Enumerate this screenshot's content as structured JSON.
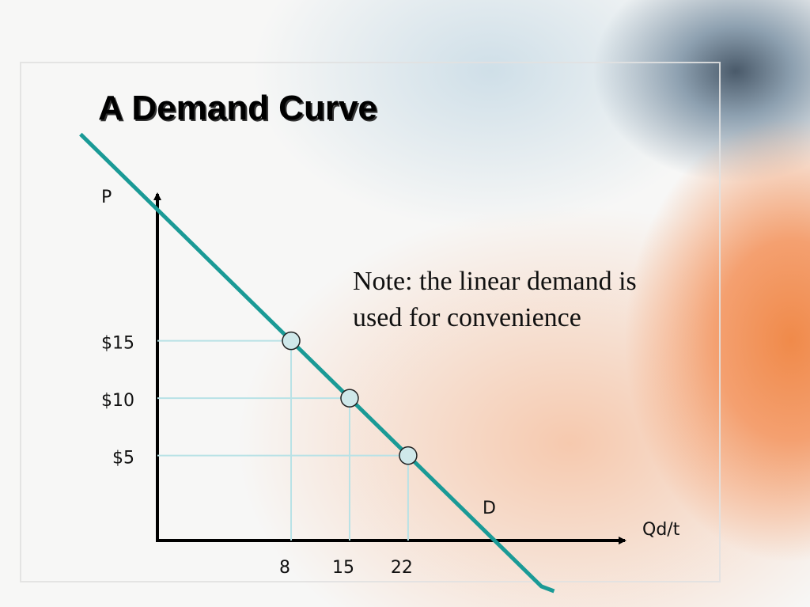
{
  "chart_data": {
    "type": "scatter",
    "title": "A Demand Curve",
    "y_label": "P",
    "x_label": "Qd/t",
    "curve_label": "D",
    "annotation": "Note:  the linear demand is used for convenience",
    "x": [
      8,
      15,
      22
    ],
    "values": [
      15,
      10,
      5
    ],
    "line_color": "#1a9a96",
    "marker_color": "#cfe8ea",
    "guide_color": "#b8e2e6",
    "xlim": [
      -8,
      47
    ],
    "ylim": [
      -2.4,
      27.8
    ],
    "xticks": [
      8,
      15,
      22
    ],
    "yticks": [
      {
        "value": 5,
        "label": "$5"
      },
      {
        "value": 10,
        "label": "$10"
      },
      {
        "value": 15,
        "label": "$15"
      }
    ]
  }
}
